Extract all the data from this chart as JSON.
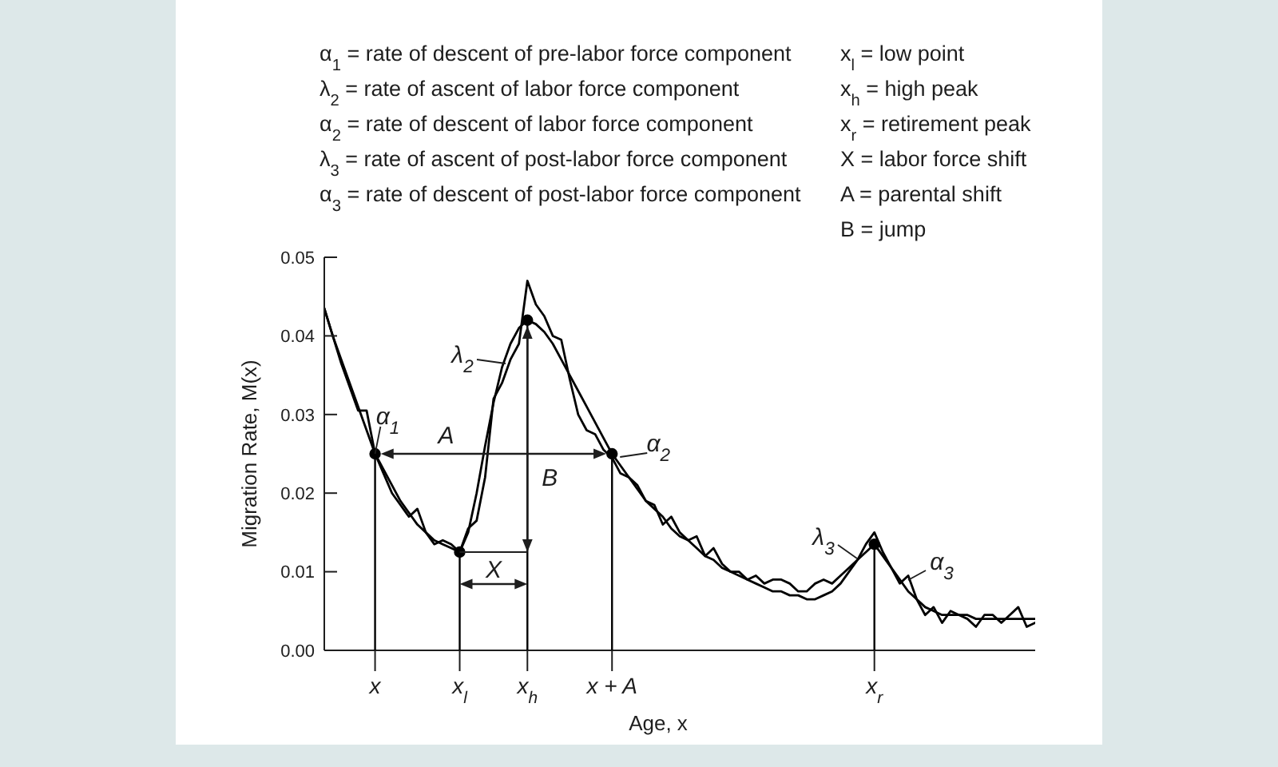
{
  "chart_data": {
    "type": "line",
    "xlabel": "Age, x",
    "ylabel": "Migration Rate, M(x)",
    "categories": [
      null,
      null,
      null,
      null,
      null,
      null,
      "x",
      null,
      null,
      null,
      null,
      null,
      null,
      null,
      null,
      null,
      "x$_{l}$",
      null,
      null,
      null,
      null,
      null,
      null,
      null,
      "x$_{h}$",
      null,
      null,
      null,
      null,
      null,
      null,
      null,
      null,
      null,
      "x + A",
      null,
      null,
      null,
      null,
      null,
      null,
      null,
      null,
      null,
      null,
      null,
      null,
      null,
      null,
      null,
      null,
      null,
      null,
      null,
      null,
      null,
      null,
      null,
      null,
      null,
      null,
      null,
      null,
      null,
      null,
      "x$_{r}$",
      null,
      null,
      null,
      null,
      null,
      null,
      null,
      null,
      null,
      null,
      null,
      null,
      null,
      null,
      null,
      null,
      null,
      null,
      null
    ],
    "ylim": [
      0,
      0.05
    ],
    "yticks": [
      {
        "value": 0,
        "label": "0.00"
      },
      0.01,
      0.02,
      0.03,
      0.04,
      0.05
    ],
    "series": [
      {
        "color": "#000000",
        "values": [
          0.0435,
          0.04,
          0.0365,
          0.0335,
          0.0305,
          0.0305,
          0.025,
          0.0225,
          0.02,
          0.0185,
          0.017,
          0.018,
          0.015,
          0.0135,
          0.014,
          0.0135,
          0.0125,
          0.0155,
          0.0165,
          0.022,
          0.032,
          0.034,
          0.037,
          0.039,
          0.047,
          0.044,
          0.0425,
          0.04,
          0.0395,
          0.0345,
          0.03,
          0.028,
          0.0275,
          0.0255,
          0.0245,
          0.0225,
          0.022,
          0.021,
          0.019,
          0.0185,
          0.016,
          0.017,
          0.015,
          0.014,
          0.0145,
          0.012,
          0.013,
          0.011,
          0.01,
          0.01,
          0.009,
          0.0095,
          0.0085,
          0.009,
          0.009,
          0.0085,
          0.0075,
          0.0075,
          0.0085,
          0.009,
          0.0085,
          0.0095,
          0.0105,
          0.0115,
          0.0135,
          0.015,
          0.0125,
          0.0105,
          0.0085,
          0.0095,
          0.0065,
          0.0045,
          0.0055,
          0.0035,
          0.005,
          0.0045,
          0.004,
          0.003,
          0.0045,
          0.0045,
          0.0035,
          0.0045,
          0.0055,
          0.003,
          0.0035
        ]
      },
      {
        "color": "#000000",
        "values": [
          0.0435,
          0.04,
          0.037,
          0.034,
          0.031,
          0.028,
          0.025,
          0.023,
          0.021,
          0.019,
          0.0175,
          0.016,
          0.015,
          0.014,
          0.0135,
          0.013,
          0.0125,
          0.015,
          0.02,
          0.026,
          0.0315,
          0.036,
          0.039,
          0.041,
          0.042,
          0.0415,
          0.0405,
          0.039,
          0.037,
          0.035,
          0.033,
          0.031,
          0.029,
          0.027,
          0.025,
          0.0235,
          0.022,
          0.0205,
          0.019,
          0.018,
          0.017,
          0.0155,
          0.0145,
          0.014,
          0.013,
          0.012,
          0.0115,
          0.0105,
          0.01,
          0.0095,
          0.009,
          0.0085,
          0.008,
          0.0075,
          0.0075,
          0.007,
          0.007,
          0.0065,
          0.0065,
          0.007,
          0.0075,
          0.0085,
          0.01,
          0.0115,
          0.0125,
          0.0135,
          0.012,
          0.0105,
          0.009,
          0.0075,
          0.0065,
          0.0055,
          0.005,
          0.0045,
          0.0045,
          0.0045,
          0.0045,
          0.004,
          0.004,
          0.004,
          0.004,
          0.004,
          0.004,
          0.004,
          0.004
        ]
      },
      {
        "type": "lollipop",
        "color": "#000000",
        "marker": "circle",
        "values": [
          null,
          null,
          null,
          null,
          null,
          null,
          0.025,
          null,
          null,
          null,
          null,
          null,
          null,
          null,
          null,
          null,
          0.0125,
          null,
          null,
          null,
          null,
          null,
          null,
          null,
          0.042,
          null,
          null,
          null,
          null,
          null,
          null,
          null,
          null,
          null,
          0.025,
          null,
          null,
          null,
          null,
          null,
          null,
          null,
          null,
          null,
          null,
          null,
          null,
          null,
          null,
          null,
          null,
          null,
          null,
          null,
          null,
          null,
          null,
          null,
          null,
          null,
          null,
          null,
          null,
          null,
          null,
          0.0135,
          null,
          null,
          null,
          null,
          null,
          null,
          null,
          null,
          null,
          null,
          null,
          null,
          null,
          null,
          null,
          null,
          null,
          null,
          null
        ]
      }
    ],
    "annotations": [
      "α$_{1}$ = rate of descent of pre-labor force component",
      "λ$_{2}$ = rate of ascent of labor force component",
      "α$_{2}$ = rate of descent of labor force component",
      "λ$_{3}$ = rate of ascent of post-labor force component",
      "α$_{3}$ = rate of descent of post-labor force component",
      "x$_{l}$ = low point",
      "x$_{h}$ = high peak",
      "x$_{r}$ = retirement peak",
      "X = labor force shift",
      "A = parental shift",
      "B = jump",
      {
        "text": "α$_{1}$",
        "x": "x",
        "y": 0.025
      },
      "λ$_{2}$",
      {
        "text": "α$_{2}$",
        "x": "x + A",
        "y": 0.025
      },
      "λ$_{3}$",
      "α$_{3}$",
      {
        "text": "A",
        "x": "x",
        "y": 0.025
      },
      "B",
      {
        "text": "X",
        "x": "x$_{l}$",
        "y": 0.0125
      }
    ]
  }
}
